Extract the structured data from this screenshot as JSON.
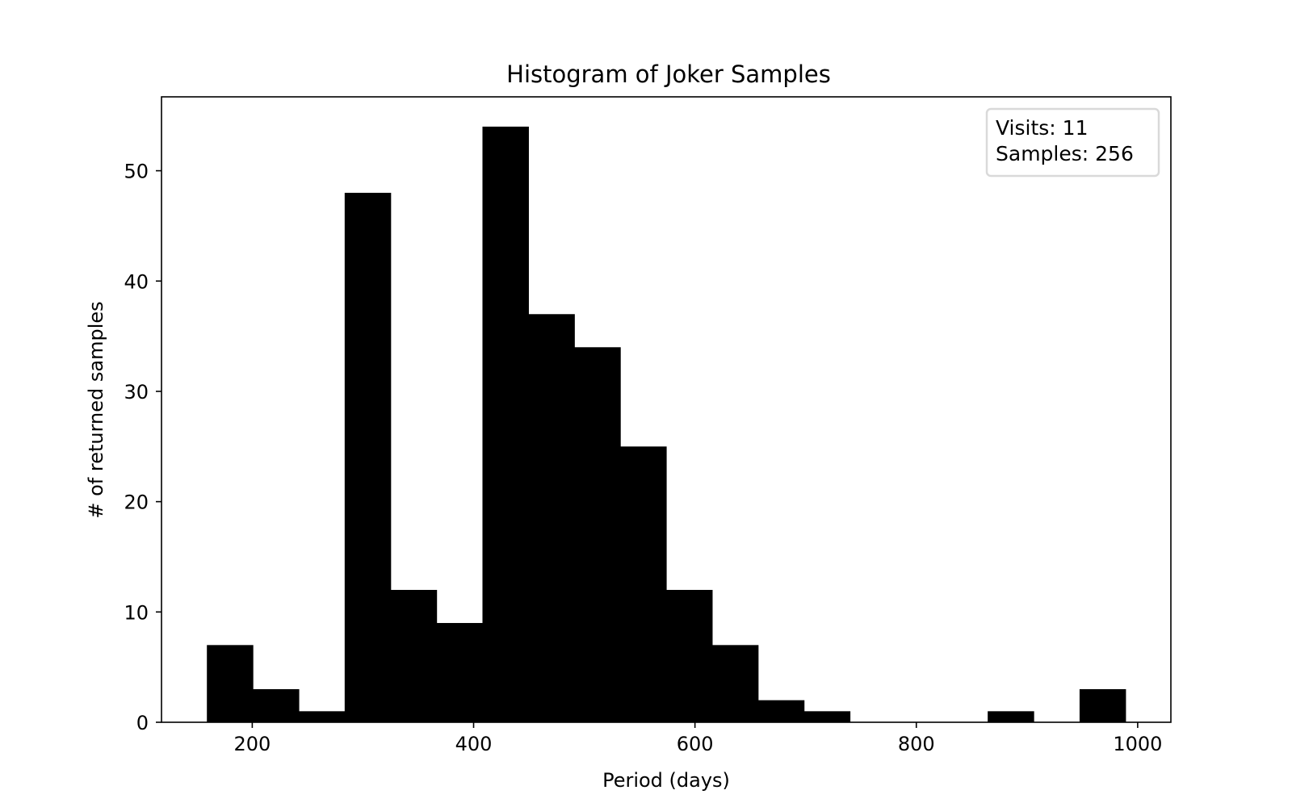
{
  "chart_data": {
    "type": "bar",
    "title": "Histogram of Joker Samples",
    "xlabel": "Period (days)",
    "ylabel": "# of returned samples",
    "xlim": [
      118,
      1030
    ],
    "ylim": [
      0,
      56.7
    ],
    "xticks": [
      200,
      400,
      600,
      800,
      1000
    ],
    "yticks": [
      0,
      10,
      20,
      30,
      40,
      50
    ],
    "bar_color": "#000000",
    "bins": [
      {
        "x0": 159,
        "x1": 200.5,
        "count": 7
      },
      {
        "x0": 200.5,
        "x1": 242,
        "count": 3
      },
      {
        "x0": 242,
        "x1": 283.5,
        "count": 1
      },
      {
        "x0": 283.5,
        "x1": 325,
        "count": 48
      },
      {
        "x0": 325,
        "x1": 366.5,
        "count": 12
      },
      {
        "x0": 366.5,
        "x1": 408,
        "count": 9
      },
      {
        "x0": 408,
        "x1": 449.5,
        "count": 54
      },
      {
        "x0": 449.5,
        "x1": 491,
        "count": 37
      },
      {
        "x0": 491,
        "x1": 532.5,
        "count": 34
      },
      {
        "x0": 532.5,
        "x1": 574,
        "count": 25
      },
      {
        "x0": 574,
        "x1": 615.5,
        "count": 12
      },
      {
        "x0": 615.5,
        "x1": 657,
        "count": 7
      },
      {
        "x0": 657,
        "x1": 698.5,
        "count": 2
      },
      {
        "x0": 698.5,
        "x1": 740,
        "count": 1
      },
      {
        "x0": 740,
        "x1": 781.5,
        "count": 0
      },
      {
        "x0": 781.5,
        "x1": 823,
        "count": 0
      },
      {
        "x0": 823,
        "x1": 864.5,
        "count": 0
      },
      {
        "x0": 864.5,
        "x1": 906,
        "count": 1
      },
      {
        "x0": 906,
        "x1": 947.5,
        "count": 0
      },
      {
        "x0": 947.5,
        "x1": 989,
        "count": 3
      }
    ],
    "legend": {
      "placement": "top-right",
      "lines": [
        "Visits: 11",
        "Samples: 256"
      ]
    },
    "grid": false
  }
}
